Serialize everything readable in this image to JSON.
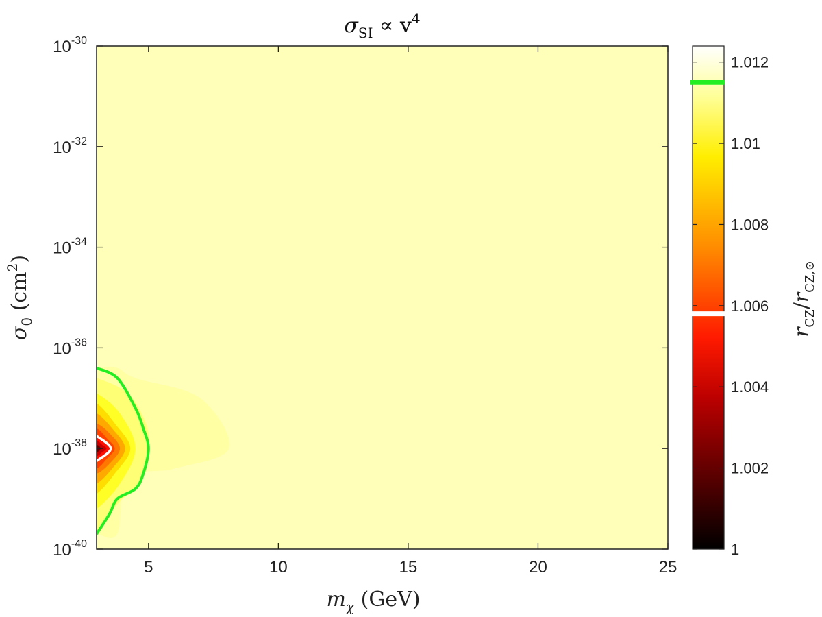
{
  "chart_data": {
    "type": "heatmap",
    "title": "σ_SI ∝ v^4",
    "title_parts": {
      "main": "σ",
      "sub": "SI",
      "rest": " ∝ v",
      "sup": "4"
    },
    "xlabel": "m_χ (GeV)",
    "xlabel_parts": {
      "main": "m",
      "sub": "χ",
      "rest": " (GeV)"
    },
    "ylabel": "σ_0 (cm^2)",
    "ylabel_parts": {
      "main": "σ",
      "sub": "0",
      "rest": " (cm",
      "sup": "2",
      "end": ")"
    },
    "colorbar_label": "r_CZ/r_CZ,⊙",
    "colorbar_label_parts": {
      "a": "r",
      "a_sub": "CZ",
      "slash": "/",
      "b": "r",
      "b_sub": "CZ,⊙"
    },
    "x_axis": {
      "min": 3,
      "max": 25,
      "ticks": [
        5,
        10,
        15,
        20,
        25
      ],
      "tick_labels": [
        "5",
        "10",
        "15",
        "20",
        "25"
      ]
    },
    "y_axis": {
      "scale": "log",
      "min": 1e-40,
      "max": 1e-30,
      "ticks": [
        -30,
        -32,
        -34,
        -36,
        -38,
        -40
      ],
      "tick_base": "10",
      "tick_exponents": [
        "-30",
        "-32",
        "-34",
        "-36",
        "-38",
        "-40"
      ]
    },
    "colorbar": {
      "min": 1.0,
      "max": 1.0124,
      "ticks": [
        1,
        1.002,
        1.004,
        1.006,
        1.008,
        1.01,
        1.012
      ],
      "tick_labels": [
        "1",
        "1.002",
        "1.004",
        "1.006",
        "1.008",
        "1.01",
        "1.012"
      ],
      "colormap": "hot",
      "markers": [
        {
          "value": 1.0115,
          "color": "#22ee22"
        },
        {
          "value": 1.0058,
          "color": "#ffffff"
        }
      ]
    },
    "background_value": 1.0118,
    "peak": {
      "x": 3.0,
      "y_exp": -38,
      "value": 1.0005
    },
    "levels": [
      {
        "value": 1.0116,
        "points": [
          [
            3,
            -36.4
          ],
          [
            3.8,
            -36.4
          ],
          [
            4.5,
            -36.6
          ],
          [
            7.0,
            -37.0
          ],
          [
            8.1,
            -38.0
          ],
          [
            6.0,
            -38.4
          ],
          [
            4.2,
            -38.6
          ],
          [
            3.8,
            -39.7
          ],
          [
            3,
            -39.7
          ]
        ]
      },
      {
        "value": 1.0112,
        "points": [
          [
            3,
            -36.6
          ],
          [
            4.2,
            -36.9
          ],
          [
            4.9,
            -37.5
          ],
          [
            5.0,
            -38.0
          ],
          [
            4.7,
            -38.7
          ],
          [
            4.0,
            -39.0
          ],
          [
            3.5,
            -39.3
          ],
          [
            3,
            -39.7
          ]
        ]
      },
      {
        "value": 1.0105,
        "points": [
          [
            3,
            -36.9
          ],
          [
            3.9,
            -37.3
          ],
          [
            4.5,
            -38.0
          ],
          [
            3.9,
            -38.7
          ],
          [
            3,
            -39.2
          ]
        ]
      },
      {
        "value": 1.0095,
        "points": [
          [
            3,
            -37.1
          ],
          [
            3.7,
            -37.5
          ],
          [
            4.3,
            -38.0
          ],
          [
            3.7,
            -38.5
          ],
          [
            3,
            -38.9
          ]
        ]
      },
      {
        "value": 1.0085,
        "points": [
          [
            3,
            -37.3
          ],
          [
            3.6,
            -37.6
          ],
          [
            4.1,
            -38.0
          ],
          [
            3.6,
            -38.4
          ],
          [
            3,
            -38.7
          ]
        ]
      },
      {
        "value": 1.0075,
        "points": [
          [
            3,
            -37.5
          ],
          [
            3.5,
            -37.7
          ],
          [
            3.9,
            -38.0
          ],
          [
            3.5,
            -38.3
          ],
          [
            3,
            -38.5
          ]
        ]
      },
      {
        "value": 1.0065,
        "points": [
          [
            3,
            -37.6
          ],
          [
            3.4,
            -37.8
          ],
          [
            3.7,
            -38.0
          ],
          [
            3.4,
            -38.2
          ],
          [
            3,
            -38.4
          ]
        ]
      },
      {
        "value": 1.0055,
        "points": [
          [
            3,
            -37.75
          ],
          [
            3.3,
            -37.85
          ],
          [
            3.55,
            -38.0
          ],
          [
            3.3,
            -38.15
          ],
          [
            3,
            -38.25
          ]
        ]
      },
      {
        "value": 1.004,
        "points": [
          [
            3,
            -37.85
          ],
          [
            3.2,
            -37.92
          ],
          [
            3.38,
            -38.0
          ],
          [
            3.2,
            -38.08
          ],
          [
            3,
            -38.15
          ]
        ]
      },
      {
        "value": 1.002,
        "points": [
          [
            3,
            -37.93
          ],
          [
            3.15,
            -38.0
          ],
          [
            3,
            -38.07
          ]
        ]
      }
    ],
    "contours": [
      {
        "name": "",
        "color": "#22ee22",
        "points": [
          [
            3,
            -36.4
          ],
          [
            3.8,
            -36.6
          ],
          [
            4.5,
            -37.2
          ],
          [
            4.8,
            -37.6
          ],
          [
            5.0,
            -38.0
          ],
          [
            4.8,
            -38.5
          ],
          [
            4.5,
            -38.8
          ],
          [
            3.8,
            -39.0
          ],
          [
            3.5,
            -39.3
          ],
          [
            3,
            -39.7
          ]
        ]
      },
      {
        "name": "",
        "color": "#ffffff",
        "points": [
          [
            3,
            -37.75
          ],
          [
            3.55,
            -38.0
          ],
          [
            3,
            -38.25
          ]
        ]
      }
    ]
  }
}
